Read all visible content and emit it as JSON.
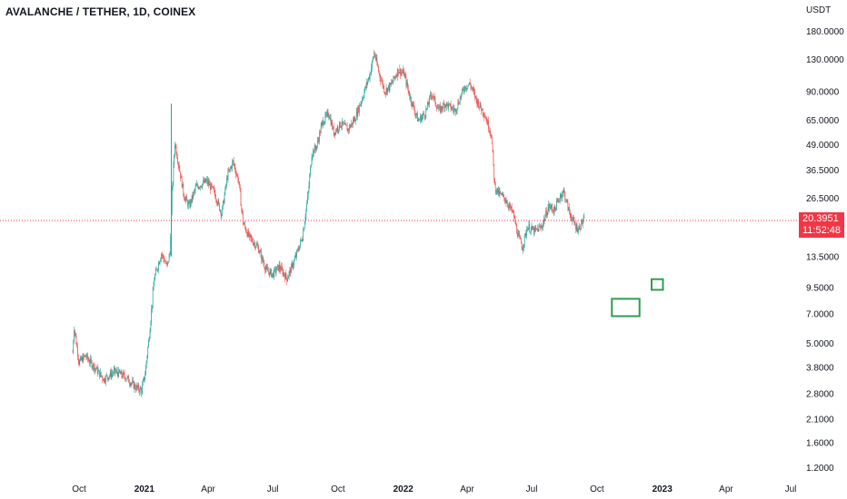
{
  "header": {
    "title": "AVALANCHE / TETHER, 1D, COINEX"
  },
  "axis": {
    "currency": "USDT"
  },
  "last_price": {
    "value": "20.3951",
    "countdown": "11:52:48"
  },
  "colors": {
    "up": "#26a69a",
    "down": "#ef5350",
    "last_line": "#f23645",
    "box": "#2e9e4f",
    "text": "#131722"
  },
  "chart_data": {
    "type": "candlestick",
    "scale": "log",
    "ylim": [
      1.1,
      240
    ],
    "yticks": [
      "180.0000",
      "130.0000",
      "90.0000",
      "65.0000",
      "49.0000",
      "36.5000",
      "26.5000",
      "13.5000",
      "9.5000",
      "7.0000",
      "5.0000",
      "3.8000",
      "2.8000",
      "2.1000",
      "1.6000",
      "1.2000"
    ],
    "xticks": [
      "Oct",
      "2021",
      "Apr",
      "Jul",
      "Oct",
      "2022",
      "Apr",
      "Jul",
      "Oct",
      "2023",
      "Apr",
      "Jul"
    ],
    "xtick_dates": [
      "2020-10-01",
      "2021-01-01",
      "2021-04-01",
      "2021-07-01",
      "2021-10-01",
      "2022-01-01",
      "2022-04-01",
      "2022-07-01",
      "2022-10-01",
      "2023-01-01",
      "2023-04-01",
      "2023-07-01"
    ],
    "price_path": [
      [
        "2020-09-22",
        4.5
      ],
      [
        "2020-09-24",
        6.0
      ],
      [
        "2020-10-01",
        4.0
      ],
      [
        "2020-10-10",
        4.3
      ],
      [
        "2020-10-25",
        3.7
      ],
      [
        "2020-11-05",
        3.3
      ],
      [
        "2020-11-20",
        3.6
      ],
      [
        "2020-12-05",
        3.4
      ],
      [
        "2020-12-20",
        3.0
      ],
      [
        "2020-12-28",
        2.9
      ],
      [
        "2021-01-02",
        3.5
      ],
      [
        "2021-01-08",
        5.5
      ],
      [
        "2021-01-15",
        10.5
      ],
      [
        "2021-01-25",
        14.0
      ],
      [
        "2021-02-02",
        12.0
      ],
      [
        "2021-02-06",
        14.0
      ],
      [
        "2021-02-09",
        28.0
      ],
      [
        "2021-02-13",
        50.0
      ],
      [
        "2021-02-20",
        36.0
      ],
      [
        "2021-02-26",
        27.0
      ],
      [
        "2021-03-05",
        24.0
      ],
      [
        "2021-03-15",
        30.0
      ],
      [
        "2021-03-30",
        32.0
      ],
      [
        "2021-04-10",
        28.0
      ],
      [
        "2021-04-20",
        22.0
      ],
      [
        "2021-04-28",
        34.0
      ],
      [
        "2021-05-06",
        40.0
      ],
      [
        "2021-05-14",
        32.0
      ],
      [
        "2021-05-20",
        20.0
      ],
      [
        "2021-05-28",
        17.0
      ],
      [
        "2021-06-10",
        15.0
      ],
      [
        "2021-06-22",
        11.5
      ],
      [
        "2021-07-01",
        11.0
      ],
      [
        "2021-07-10",
        12.0
      ],
      [
        "2021-07-21",
        10.5
      ],
      [
        "2021-08-01",
        13.0
      ],
      [
        "2021-08-12",
        17.0
      ],
      [
        "2021-08-20",
        28.0
      ],
      [
        "2021-08-25",
        44.0
      ],
      [
        "2021-09-01",
        48.0
      ],
      [
        "2021-09-09",
        63.0
      ],
      [
        "2021-09-18",
        70.0
      ],
      [
        "2021-09-25",
        56.0
      ],
      [
        "2021-10-05",
        62.0
      ],
      [
        "2021-10-15",
        58.0
      ],
      [
        "2021-10-25",
        66.0
      ],
      [
        "2021-11-05",
        85.0
      ],
      [
        "2021-11-15",
        110.0
      ],
      [
        "2021-11-21",
        140.0
      ],
      [
        "2021-11-28",
        110.0
      ],
      [
        "2021-12-06",
        90.0
      ],
      [
        "2021-12-14",
        96.0
      ],
      [
        "2021-12-25",
        115.0
      ],
      [
        "2022-01-02",
        110.0
      ],
      [
        "2022-01-10",
        85.0
      ],
      [
        "2022-01-22",
        64.0
      ],
      [
        "2022-02-01",
        70.0
      ],
      [
        "2022-02-10",
        88.0
      ],
      [
        "2022-02-20",
        72.0
      ],
      [
        "2022-03-01",
        78.0
      ],
      [
        "2022-03-15",
        72.0
      ],
      [
        "2022-03-28",
        94.0
      ],
      [
        "2022-04-05",
        98.0
      ],
      [
        "2022-04-15",
        80.0
      ],
      [
        "2022-04-25",
        70.0
      ],
      [
        "2022-05-05",
        55.0
      ],
      [
        "2022-05-10",
        30.0
      ],
      [
        "2022-05-15",
        28.0
      ],
      [
        "2022-05-25",
        26.0
      ],
      [
        "2022-06-05",
        22.0
      ],
      [
        "2022-06-12",
        17.0
      ],
      [
        "2022-06-18",
        15.0
      ],
      [
        "2022-06-25",
        19.0
      ],
      [
        "2022-07-05",
        18.0
      ],
      [
        "2022-07-15",
        19.0
      ],
      [
        "2022-07-25",
        24.0
      ],
      [
        "2022-08-02",
        23.0
      ],
      [
        "2022-08-10",
        27.0
      ],
      [
        "2022-08-15",
        28.5
      ],
      [
        "2022-08-22",
        23.0
      ],
      [
        "2022-08-30",
        19.5
      ],
      [
        "2022-09-05",
        18.5
      ],
      [
        "2022-09-10",
        20.0
      ],
      [
        "2022-09-13",
        20.4
      ]
    ],
    "annotations": [
      {
        "type": "box",
        "x0": "2022-10-22",
        "x1": "2022-11-30",
        "y0": 6.8,
        "y1": 8.3
      },
      {
        "type": "box",
        "x0": "2022-12-17",
        "x1": "2023-01-02",
        "y0": 9.2,
        "y1": 10.4
      }
    ]
  }
}
